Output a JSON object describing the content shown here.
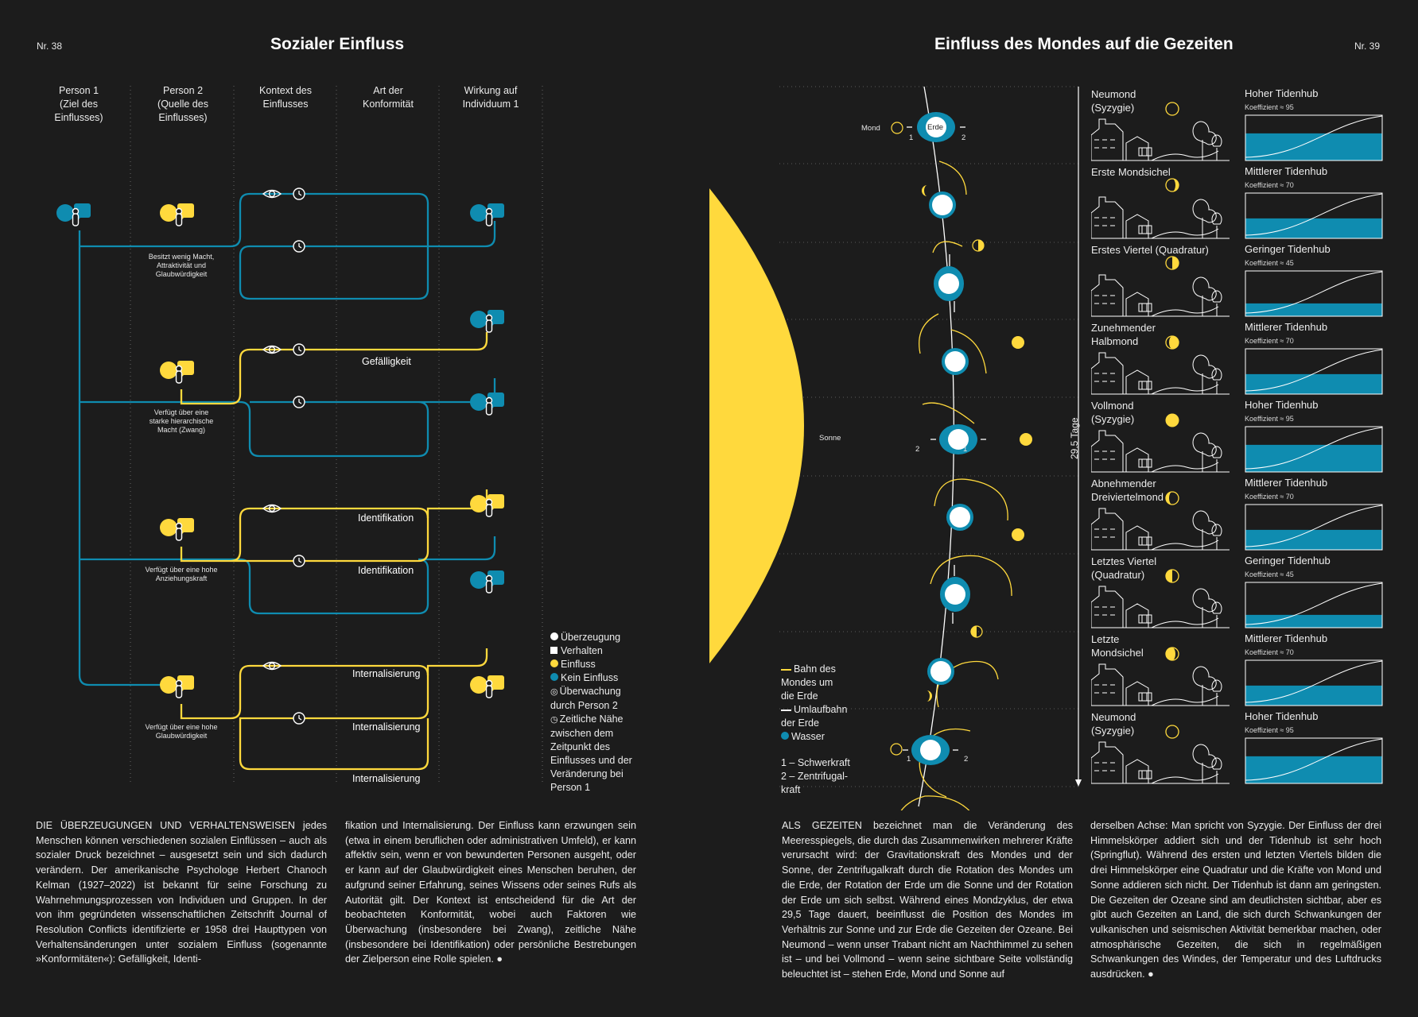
{
  "colors": {
    "background": "#1c1c1c",
    "blue": "#0f8cb0",
    "yellow": "#ffd93d",
    "white": "#ffffff",
    "dot": "#4a4a4a"
  },
  "left": {
    "page_number": "Nr. 38",
    "title": "Sozialer Einfluss",
    "columns": [
      "Person 1\n(Ziel des\nEinflusses)",
      "Person 2\n(Quelle des\nEinflusses)",
      "Kontext des\nEinflusses",
      "Art der\nKonformität",
      "Wirkung auf\nIndividuum 1"
    ],
    "rows": [
      {
        "label": "Besitzt wenig Macht,\nAttraktivität und\nGlaubwürdigkeit"
      },
      {
        "label": "Verfügt über eine\nstarke hierarchische\nMacht (Zwang)"
      },
      {
        "label": "Verfügt über eine hohe\nAnziehungskraft"
      },
      {
        "label": "Verfügt über eine hohe\nGlaubwürdigkeit"
      }
    ],
    "conformity": {
      "gefaelligkeit": "Gefälligkeit",
      "identifikation_1": "Identifikation",
      "identifikation_2": "Identifikation",
      "internalisierung_1": "Internalisierung",
      "internalisierung_2": "Internalisierung",
      "internalisierung_3": "Internalisierung"
    },
    "legend": [
      {
        "icon": "belief-icon",
        "text": "Überzeugung"
      },
      {
        "icon": "behavior-icon",
        "text": "Verhalten"
      },
      {
        "icon": "influence-icon",
        "text": "Einfluss"
      },
      {
        "icon": "no-influence-icon",
        "text": "Kein Einfluss"
      },
      {
        "icon": "eye-icon",
        "text": "Überwachung\ndurch Person 2"
      },
      {
        "icon": "clock-icon",
        "text": "Zeitliche Nähe\nzwischen dem\nZeitpunkt des\nEinflusses und der\nVeränderung bei\nPerson 1"
      }
    ],
    "body_col1": "DIE ÜBERZEUGUNGEN UND VERHALTENSWEISEN jedes Menschen können verschiedenen sozialen Einflüssen – auch als sozialer Druck bezeichnet – ausgesetzt sein und sich dadurch verändern. Der amerikanische Psychologe Herbert Chanoch Kelman (1927–2022) ist bekannt für seine Forschung zu Wahrnehmungsprozessen von Individuen und Gruppen. In der von ihm gegründeten wissenschaftlichen Zeitschrift Journal of Resolution Conflicts identifizierte er 1958 drei Haupttypen von Verhaltensänderungen unter sozialem Einfluss (sogenannte »Konformitäten«): Gefälligkeit, Identi-",
    "body_col2": "fikation und Internalisierung. Der Einfluss kann erzwungen sein (etwa in einem beruflichen oder administrativen Umfeld), er kann affektiv sein, wenn er von bewunderten Personen ausgeht, oder er kann auf der Glaubwürdigkeit eines Menschen beruhen, der aufgrund seiner Erfahrung, seines Wissens oder seines Rufs als Autorität gilt. Der Kontext ist entscheidend für die Art der beobachteten Konformität, wobei auch Faktoren wie Überwachung (insbesondere bei Zwang), zeitliche Nähe (insbesondere bei Identifikation) oder persönliche Bestrebungen der Zielperson eine Rolle spielen. ●"
  },
  "right": {
    "page_number": "Nr. 39",
    "title": "Einfluss des Mondes auf die Gezeiten",
    "labels": {
      "mond": "Mond",
      "erde": "Erde",
      "sonne": "Sonne",
      "days": "29,5 Tage",
      "one": "1",
      "two": "2"
    },
    "legend": [
      {
        "text": "Bahn des\nMondes um\ndie Erde"
      },
      {
        "text": "Umlaufbahn\nder Erde"
      },
      {
        "text": "Wasser"
      }
    ],
    "forces": "1 – Schwerkraft\n2 – Zentrifugal-\nkraft",
    "phases": [
      {
        "name": "Neumond\n(Syzygie)",
        "tide": "Hoher Tidenhub",
        "koef": "Koeffizient ≈ 95",
        "level": 0.95
      },
      {
        "name": "Erste Mondsichel",
        "tide": "Mittlerer Tidenhub",
        "koef": "Koeffizient ≈ 70",
        "level": 0.7
      },
      {
        "name": "Erstes Viertel (Quadratur)",
        "tide": "Geringer Tidenhub",
        "koef": "Koeffizient ≈ 45",
        "level": 0.45
      },
      {
        "name": "Zunehmender\nHalbmond",
        "tide": "Mittlerer Tidenhub",
        "koef": "Koeffizient ≈ 70",
        "level": 0.7
      },
      {
        "name": "Vollmond\n(Syzygie)",
        "tide": "Hoher Tidenhub",
        "koef": "Koeffizient ≈ 95",
        "level": 0.95
      },
      {
        "name": "Abnehmender\nDreiviertelmond",
        "tide": "Mittlerer Tidenhub",
        "koef": "Koeffizient ≈ 70",
        "level": 0.7
      },
      {
        "name": "Letztes Viertel\n(Quadratur)",
        "tide": "Geringer Tidenhub",
        "koef": "Koeffizient ≈ 45",
        "level": 0.45
      },
      {
        "name": "Letzte\nMondsichel",
        "tide": "Mittlerer Tidenhub",
        "koef": "Koeffizient ≈ 70",
        "level": 0.7
      },
      {
        "name": "Neumond\n(Syzygie)",
        "tide": "Hoher Tidenhub",
        "koef": "Koeffizient ≈ 95",
        "level": 0.95
      }
    ],
    "body_col1": "ALS GEZEITEN bezeichnet man die Veränderung des Meeresspiegels, die durch das Zusammenwirken mehrerer Kräfte verursacht wird: der Gravitationskraft des Mondes und der Sonne, der Zentrifugalkraft durch die Rotation des Mondes um die Erde, der Rotation der Erde um die Sonne und der Rotation der Erde um sich selbst. Während eines Mondzyklus, der etwa 29,5 Tage dauert, beeinflusst die Position des Mondes im Verhältnis zur Sonne und zur Erde die Gezeiten der Ozeane. Bei Neumond – wenn unser Trabant nicht am Nachthimmel zu sehen ist – und bei Vollmond – wenn seine sichtbare Seite vollständig beleuchtet ist – stehen Erde, Mond und Sonne auf",
    "body_col2": "derselben Achse: Man spricht von Syzygie. Der Einfluss der drei Himmelskörper addiert sich und der Tidenhub ist sehr hoch (Springflut). Während des ersten und letzten Viertels bilden die drei Himmelskörper eine Quadratur und die Kräfte von Mond und Sonne addieren sich nicht. Der Tidenhub ist dann am geringsten. Die Gezeiten der Ozeane sind am deutlichsten sichtbar, aber es gibt auch Gezeiten an Land, die sich durch Schwankungen der vulkanischen und seismischen Aktivität bemerkbar machen, oder atmosphärische Gezeiten, die sich in regelmäßigen Schwankungen des Windes, der Temperatur und des Luftdrucks ausdrücken. ●"
  }
}
